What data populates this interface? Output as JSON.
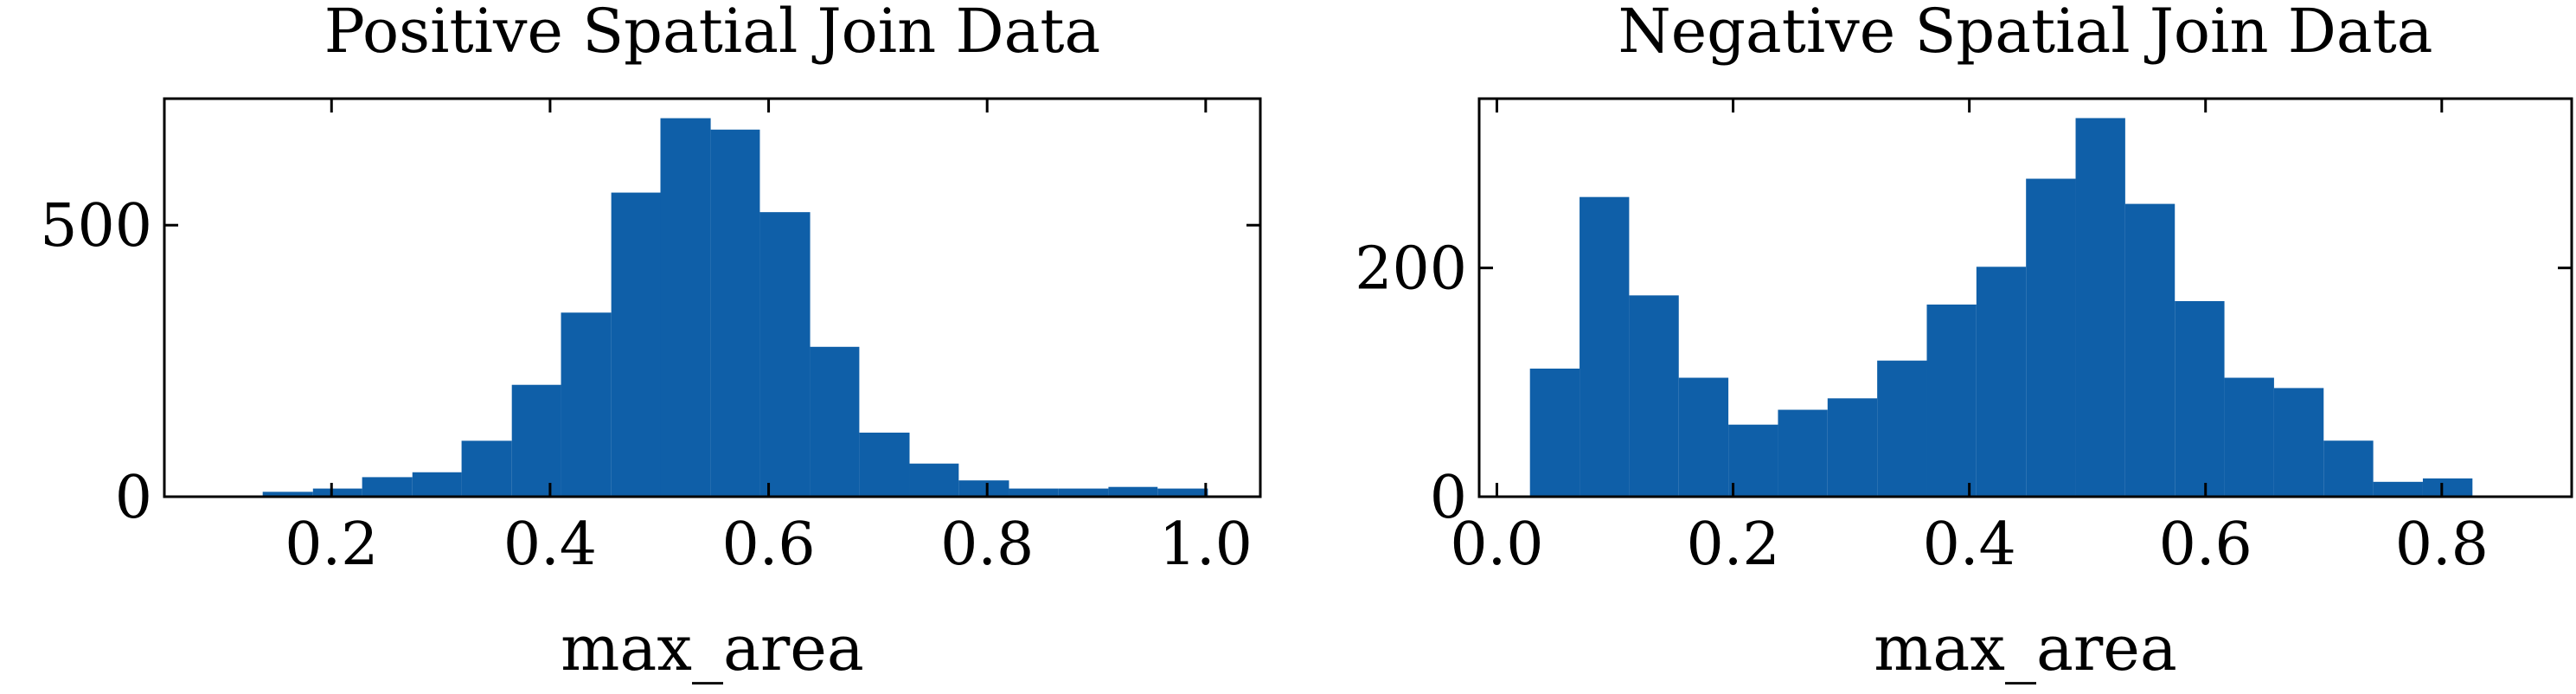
{
  "chart_data": [
    {
      "type": "histogram",
      "title": "Positive Spatial Join Data",
      "xlabel": "max_area",
      "color": "#0f5fa8",
      "bins": [
        0.137,
        0.183,
        0.228,
        0.274,
        0.319,
        0.365,
        0.41,
        0.456,
        0.501,
        0.547,
        0.592,
        0.638,
        0.683,
        0.729,
        0.774,
        0.82,
        0.865,
        0.911,
        0.956,
        1.002
      ],
      "counts": [
        9,
        15,
        36,
        45,
        103,
        206,
        339,
        560,
        697,
        676,
        524,
        276,
        118,
        61,
        30,
        15,
        15,
        18,
        15
      ],
      "xlim": [
        0.047,
        1.05
      ],
      "ylim": [
        0,
        733
      ],
      "xticks": [
        0.2,
        0.4,
        0.6,
        0.8,
        {
          "value": 1.0,
          "label": "1.0"
        }
      ],
      "yticks": [
        0,
        500
      ]
    },
    {
      "type": "histogram",
      "title": "Negative Spatial Join Data",
      "xlabel": "max_area",
      "color": "#0f5fa8",
      "bins": [
        0.028,
        0.07,
        0.112,
        0.154,
        0.196,
        0.238,
        0.28,
        0.322,
        0.364,
        0.406,
        0.448,
        0.49,
        0.532,
        0.574,
        0.616,
        0.658,
        0.7,
        0.742,
        0.784,
        0.826,
        0.868
      ],
      "counts": [
        112,
        262,
        176,
        104,
        63,
        76,
        86,
        119,
        168,
        201,
        278,
        331,
        256,
        171,
        104,
        95,
        49,
        13,
        16,
        1
      ],
      "xlim": [
        -0.015,
        0.91
      ],
      "ylim": [
        0,
        348
      ],
      "xticks": [
        {
          "value": 0.0,
          "label": "0.0"
        },
        0.2,
        0.4,
        0.6,
        0.8
      ],
      "yticks": [
        0,
        200
      ]
    }
  ]
}
